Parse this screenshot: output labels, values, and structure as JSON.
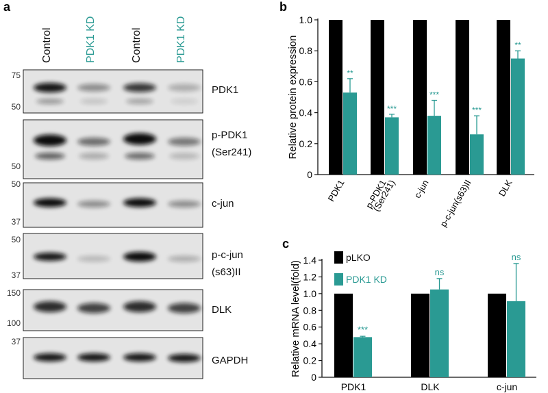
{
  "panels": {
    "a": {
      "letter": "a",
      "lanes": [
        "Control",
        "PDK1 KD",
        "Control",
        "PDK1 KD"
      ],
      "lane_colors": [
        "#111111",
        "#2a9a93",
        "#111111",
        "#2a9a93"
      ],
      "blots": [
        {
          "label": [
            "PDK1"
          ],
          "markers": [
            "75",
            "50"
          ]
        },
        {
          "label": [
            "p-PDK1",
            "(Ser241)"
          ],
          "markers": [
            "50"
          ]
        },
        {
          "label": [
            "c-jun"
          ],
          "markers": [
            "50",
            "37"
          ]
        },
        {
          "label": [
            "p-c-jun",
            "(s63)II"
          ],
          "markers": [
            "50",
            "37"
          ]
        },
        {
          "label": [
            "DLK"
          ],
          "markers": [
            "150",
            "100"
          ]
        },
        {
          "label": [
            "GAPDH"
          ],
          "markers": [
            "37"
          ]
        }
      ]
    },
    "b": {
      "letter": "b"
    },
    "c": {
      "letter": "c"
    }
  },
  "chart_data": [
    {
      "type": "bar",
      "panel": "b",
      "categories": [
        "PDK1",
        "p-PDK1 (Ser241)",
        "c-jun",
        "p-c-jun(s63)II",
        "DLK"
      ],
      "category_labels": [
        [
          "PDK1"
        ],
        [
          "p-PDK1",
          "(Ser241)"
        ],
        [
          "c-jun"
        ],
        [
          "p-c-jun(s63)II"
        ],
        [
          "DLK"
        ]
      ],
      "series": [
        {
          "values": [
            1.0,
            1.0,
            1.0,
            1.0,
            1.0
          ],
          "color": "#000000"
        },
        {
          "values": [
            0.53,
            0.37,
            0.38,
            0.26,
            0.75
          ],
          "errors": [
            0.09,
            0.02,
            0.1,
            0.12,
            0.05
          ],
          "color": "#2a9a93"
        }
      ],
      "annotations": [
        "**",
        "***",
        "***",
        "***",
        "**"
      ],
      "ylabel": "Relative protein expression",
      "ylim": [
        0,
        1.0
      ],
      "yticks": [
        "0",
        "0.2",
        "0.4",
        "0.6",
        "0.8",
        "1.0"
      ],
      "grid": false
    },
    {
      "type": "bar",
      "panel": "c",
      "categories": [
        "PDK1",
        "DLK",
        "c-jun"
      ],
      "series": [
        {
          "name": "pLKO",
          "values": [
            1.0,
            1.0,
            1.0
          ],
          "color": "#000000"
        },
        {
          "name": "PDK1 KD",
          "values": [
            0.48,
            1.05,
            0.91
          ],
          "errors": [
            0.01,
            0.13,
            0.45
          ],
          "color": "#2a9a93"
        }
      ],
      "annotations": [
        "***",
        "ns",
        "ns"
      ],
      "ylabel": "Relative mRNA level(fold)",
      "ylim": [
        0,
        1.4
      ],
      "yticks": [
        "0",
        "0.2",
        "0.4",
        "0.6",
        "0.8",
        "1.0",
        "1.2",
        "1.4"
      ],
      "legend_position": "top-left",
      "grid": false
    }
  ]
}
